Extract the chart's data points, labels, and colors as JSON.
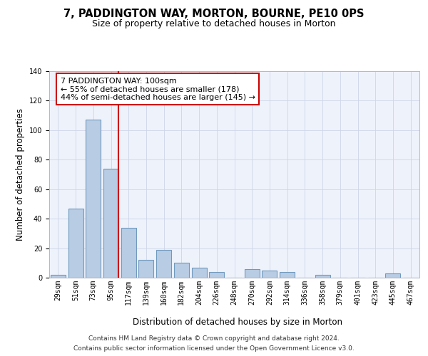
{
  "title": "7, PADDINGTON WAY, MORTON, BOURNE, PE10 0PS",
  "subtitle": "Size of property relative to detached houses in Morton",
  "xlabel": "Distribution of detached houses by size in Morton",
  "ylabel": "Number of detached properties",
  "categories": [
    "29sqm",
    "51sqm",
    "73sqm",
    "95sqm",
    "117sqm",
    "139sqm",
    "160sqm",
    "182sqm",
    "204sqm",
    "226sqm",
    "248sqm",
    "270sqm",
    "292sqm",
    "314sqm",
    "336sqm",
    "358sqm",
    "379sqm",
    "401sqm",
    "423sqm",
    "445sqm",
    "467sqm"
  ],
  "values": [
    2,
    47,
    107,
    74,
    34,
    12,
    19,
    10,
    7,
    4,
    0,
    6,
    5,
    4,
    0,
    2,
    0,
    0,
    0,
    3,
    0
  ],
  "bar_color": "#b8cce4",
  "bar_edge_color": "#7099be",
  "bar_linewidth": 0.8,
  "vline_x_index": 3,
  "vline_color": "#cc0000",
  "vline_linewidth": 1.5,
  "annotation_title": "7 PADDINGTON WAY: 100sqm",
  "annotation_line1": "← 55% of detached houses are smaller (178)",
  "annotation_line2": "44% of semi-detached houses are larger (145) →",
  "annotation_box_facecolor": "#ffffff",
  "annotation_box_edgecolor": "#cc0000",
  "grid_color": "#cdd5e8",
  "bg_color": "#eef2fb",
  "ylim": [
    0,
    140
  ],
  "yticks": [
    0,
    20,
    40,
    60,
    80,
    100,
    120,
    140
  ],
  "footnote1": "Contains HM Land Registry data © Crown copyright and database right 2024.",
  "footnote2": "Contains public sector information licensed under the Open Government Licence v3.0.",
  "title_fontsize": 10.5,
  "subtitle_fontsize": 9,
  "xlabel_fontsize": 8.5,
  "ylabel_fontsize": 8.5,
  "tick_fontsize": 7,
  "annotation_fontsize": 8,
  "footnote_fontsize": 6.5
}
